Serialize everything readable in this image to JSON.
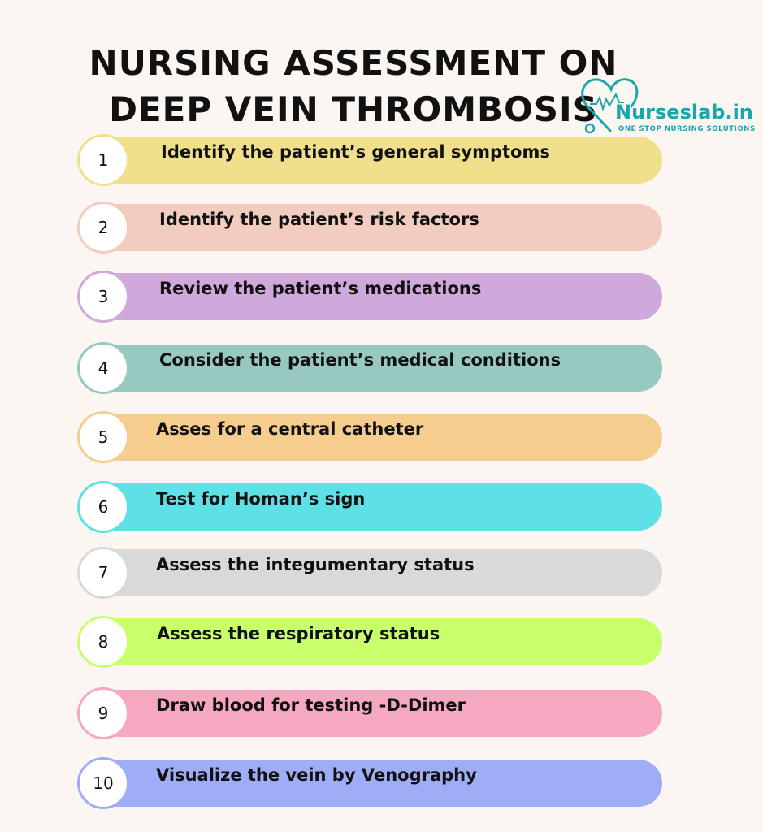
{
  "title": {
    "line1": "NURSING ASSESSMENT ON",
    "line2": "DEEP VEIN THROMBOSIS"
  },
  "logo": {
    "brand": "Nurseslab.in",
    "tagline": "ONE STOP NURSING SOLUTIONS",
    "color": "#1aa6ad",
    "icon": "heart-stethoscope-icon"
  },
  "steps": [
    {
      "number": "1",
      "label": "Identify the patient’s general symptoms",
      "color": "#f0e08c"
    },
    {
      "number": "2",
      "label": "Identify the patient’s risk factors",
      "color": "#f2cdbf"
    },
    {
      "number": "3",
      "label": "Review the patient’s medications",
      "color": "#cfa8dc"
    },
    {
      "number": "4",
      "label": "Consider the patient’s medical conditions",
      "color": "#97c9c0"
    },
    {
      "number": "5",
      "label": "Asses for a central catheter",
      "color": "#f5cd8e"
    },
    {
      "number": "6",
      "label": "Test for Homan’s sign",
      "color": "#5ee1e6"
    },
    {
      "number": "7",
      "label": "Assess the integumentary status",
      "color": "#d9d9d9"
    },
    {
      "number": "8",
      "label": "Assess the respiratory status",
      "color": "#c8ff6b"
    },
    {
      "number": "9",
      "label": "Draw blood for testing -D-Dimer",
      "color": "#f5a8c0"
    },
    {
      "number": "10",
      "label": "Visualize the vein by Venography",
      "color": "#9eadf5"
    }
  ]
}
